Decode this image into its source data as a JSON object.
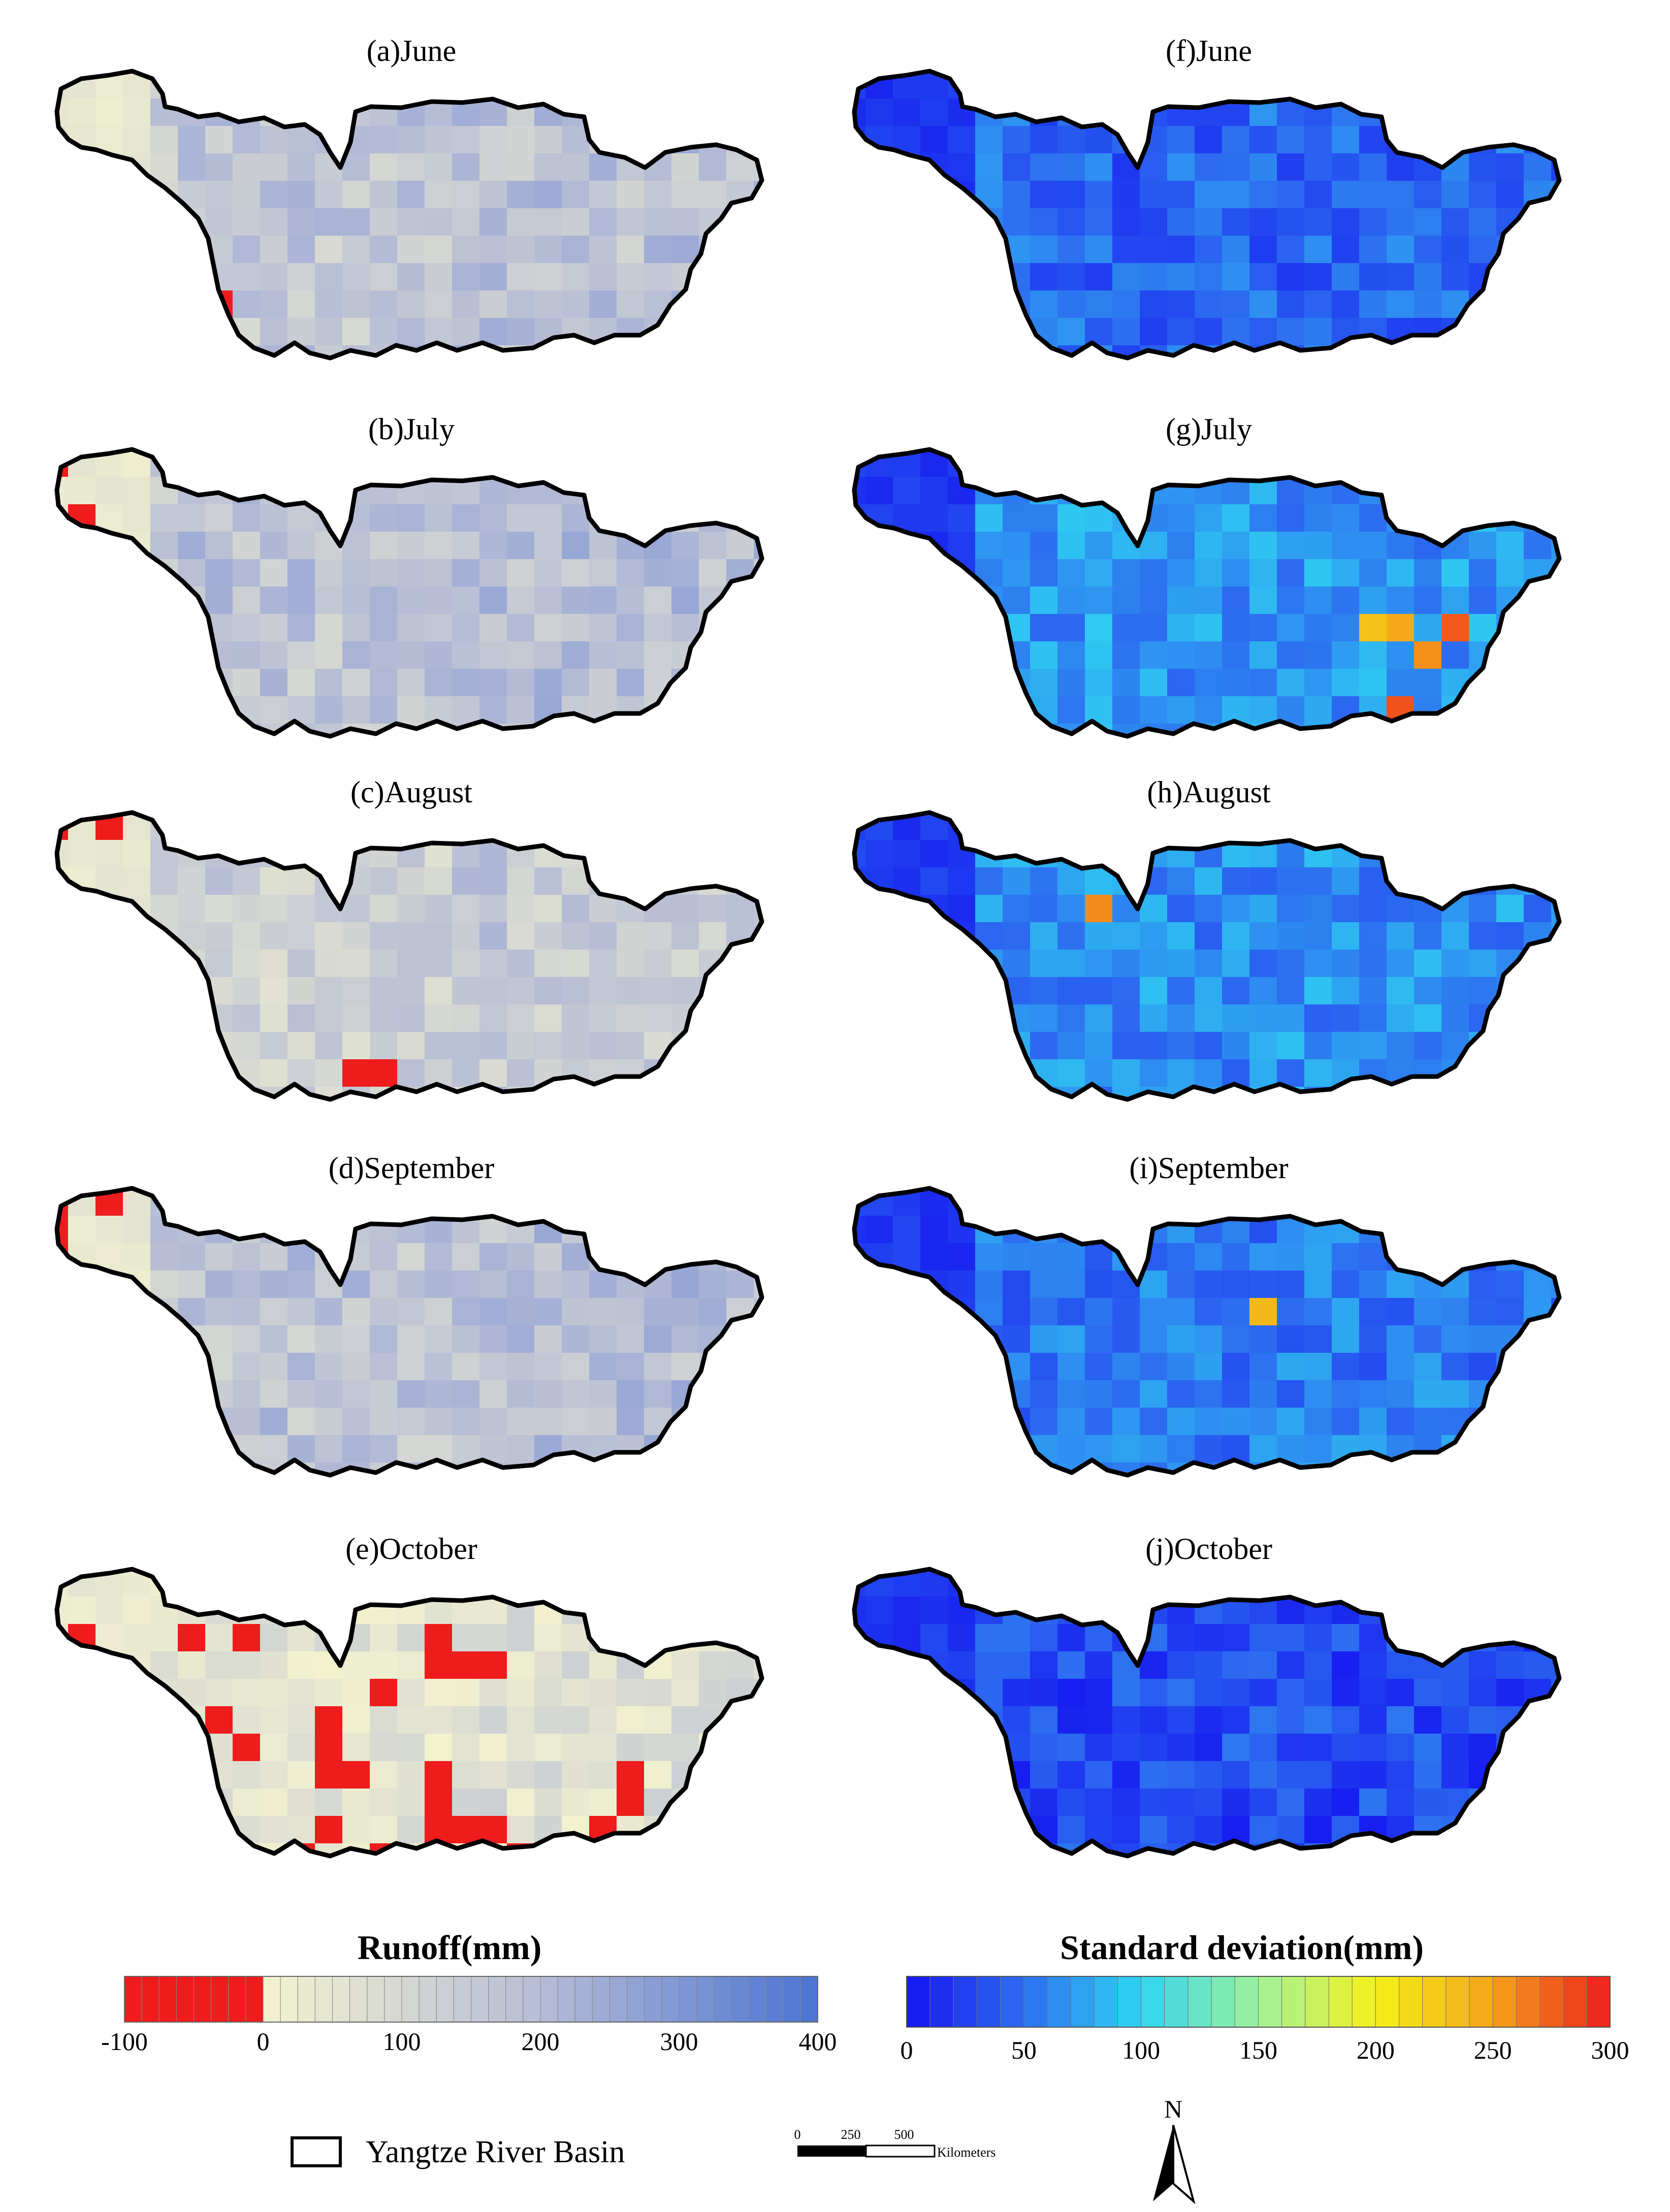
{
  "basin_legend": "Yangtze River Basin",
  "scale_bar": {
    "ticks": [
      "0",
      "250",
      "500"
    ],
    "unit": "Kilometers"
  },
  "north_arrow": {
    "label": "N",
    "icon": "north-arrow-icon"
  },
  "colorbars": [
    {
      "title": "Runoff(mm)",
      "range": [
        -100,
        400
      ],
      "tick_labels": [
        "-100",
        "0",
        "100",
        "200",
        "300",
        "400"
      ],
      "tick_values": [
        -100,
        0,
        100,
        200,
        300,
        400
      ],
      "segments": 40,
      "colors": {
        "negative": "#ee1c1c",
        "low": "#f4f3cf",
        "mid": "#b6bcd5",
        "high": "#4a73d4"
      }
    },
    {
      "title": "Standard deviation(mm)",
      "range": [
        0,
        300
      ],
      "tick_labels": [
        "0",
        "50",
        "100",
        "150",
        "200",
        "250",
        "300"
      ],
      "tick_values": [
        0,
        50,
        100,
        150,
        200,
        250,
        300
      ],
      "segments": 30,
      "colors": [
        "#1414f0",
        "#2d6ef0",
        "#2fd6f2",
        "#9ff29a",
        "#f4f21a",
        "#f6a31a",
        "#ee1c1c"
      ]
    }
  ],
  "panels": [
    {
      "id": "a",
      "title": "(a)June",
      "variable": "runoff",
      "hot_cells": [
        [
          4,
          6
        ],
        [
          5,
          6
        ],
        [
          5,
          7
        ],
        [
          6,
          8
        ]
      ],
      "base": 160
    },
    {
      "id": "b",
      "title": "(b)July",
      "variable": "runoff",
      "hot_cells": [
        [
          0,
          0
        ],
        [
          1,
          2
        ]
      ],
      "base": 170
    },
    {
      "id": "c",
      "title": "(c)August",
      "variable": "runoff",
      "hot_cells": [
        [
          0,
          0
        ],
        [
          2,
          0
        ],
        [
          11,
          9
        ],
        [
          12,
          9
        ]
      ],
      "base": 130
    },
    {
      "id": "d",
      "title": "(d)September",
      "variable": "runoff",
      "hot_cells": [
        [
          0,
          0
        ],
        [
          2,
          0
        ],
        [
          0,
          1
        ],
        [
          0,
          2
        ]
      ],
      "base": 170
    },
    {
      "id": "e",
      "title": "(e)October",
      "variable": "runoff",
      "hot_cells": [
        [
          1,
          2
        ],
        [
          14,
          8
        ],
        [
          15,
          9
        ],
        [
          16,
          9
        ],
        [
          17,
          10
        ],
        [
          21,
          7
        ],
        [
          21,
          8
        ],
        [
          20,
          9
        ],
        [
          19,
          10
        ]
      ],
      "base": 40
    },
    {
      "id": "f",
      "title": "(f)June",
      "variable": "std",
      "hot_cells": [],
      "base": 45
    },
    {
      "id": "g",
      "title": "(g)July",
      "variable": "std",
      "hot_cells": [
        [
          19,
          6
        ],
        [
          20,
          6
        ],
        [
          21,
          7
        ],
        [
          20,
          9
        ],
        [
          22,
          6
        ]
      ],
      "base": 70
    },
    {
      "id": "h",
      "title": "(h)August",
      "variable": "std",
      "hot_cells": [
        [
          9,
          3
        ]
      ],
      "base": 65
    },
    {
      "id": "i",
      "title": "(i)September",
      "variable": "std",
      "hot_cells": [
        [
          15,
          4
        ]
      ],
      "base": 55
    },
    {
      "id": "j",
      "title": "(j)October",
      "variable": "std",
      "hot_cells": [],
      "base": 30
    }
  ]
}
